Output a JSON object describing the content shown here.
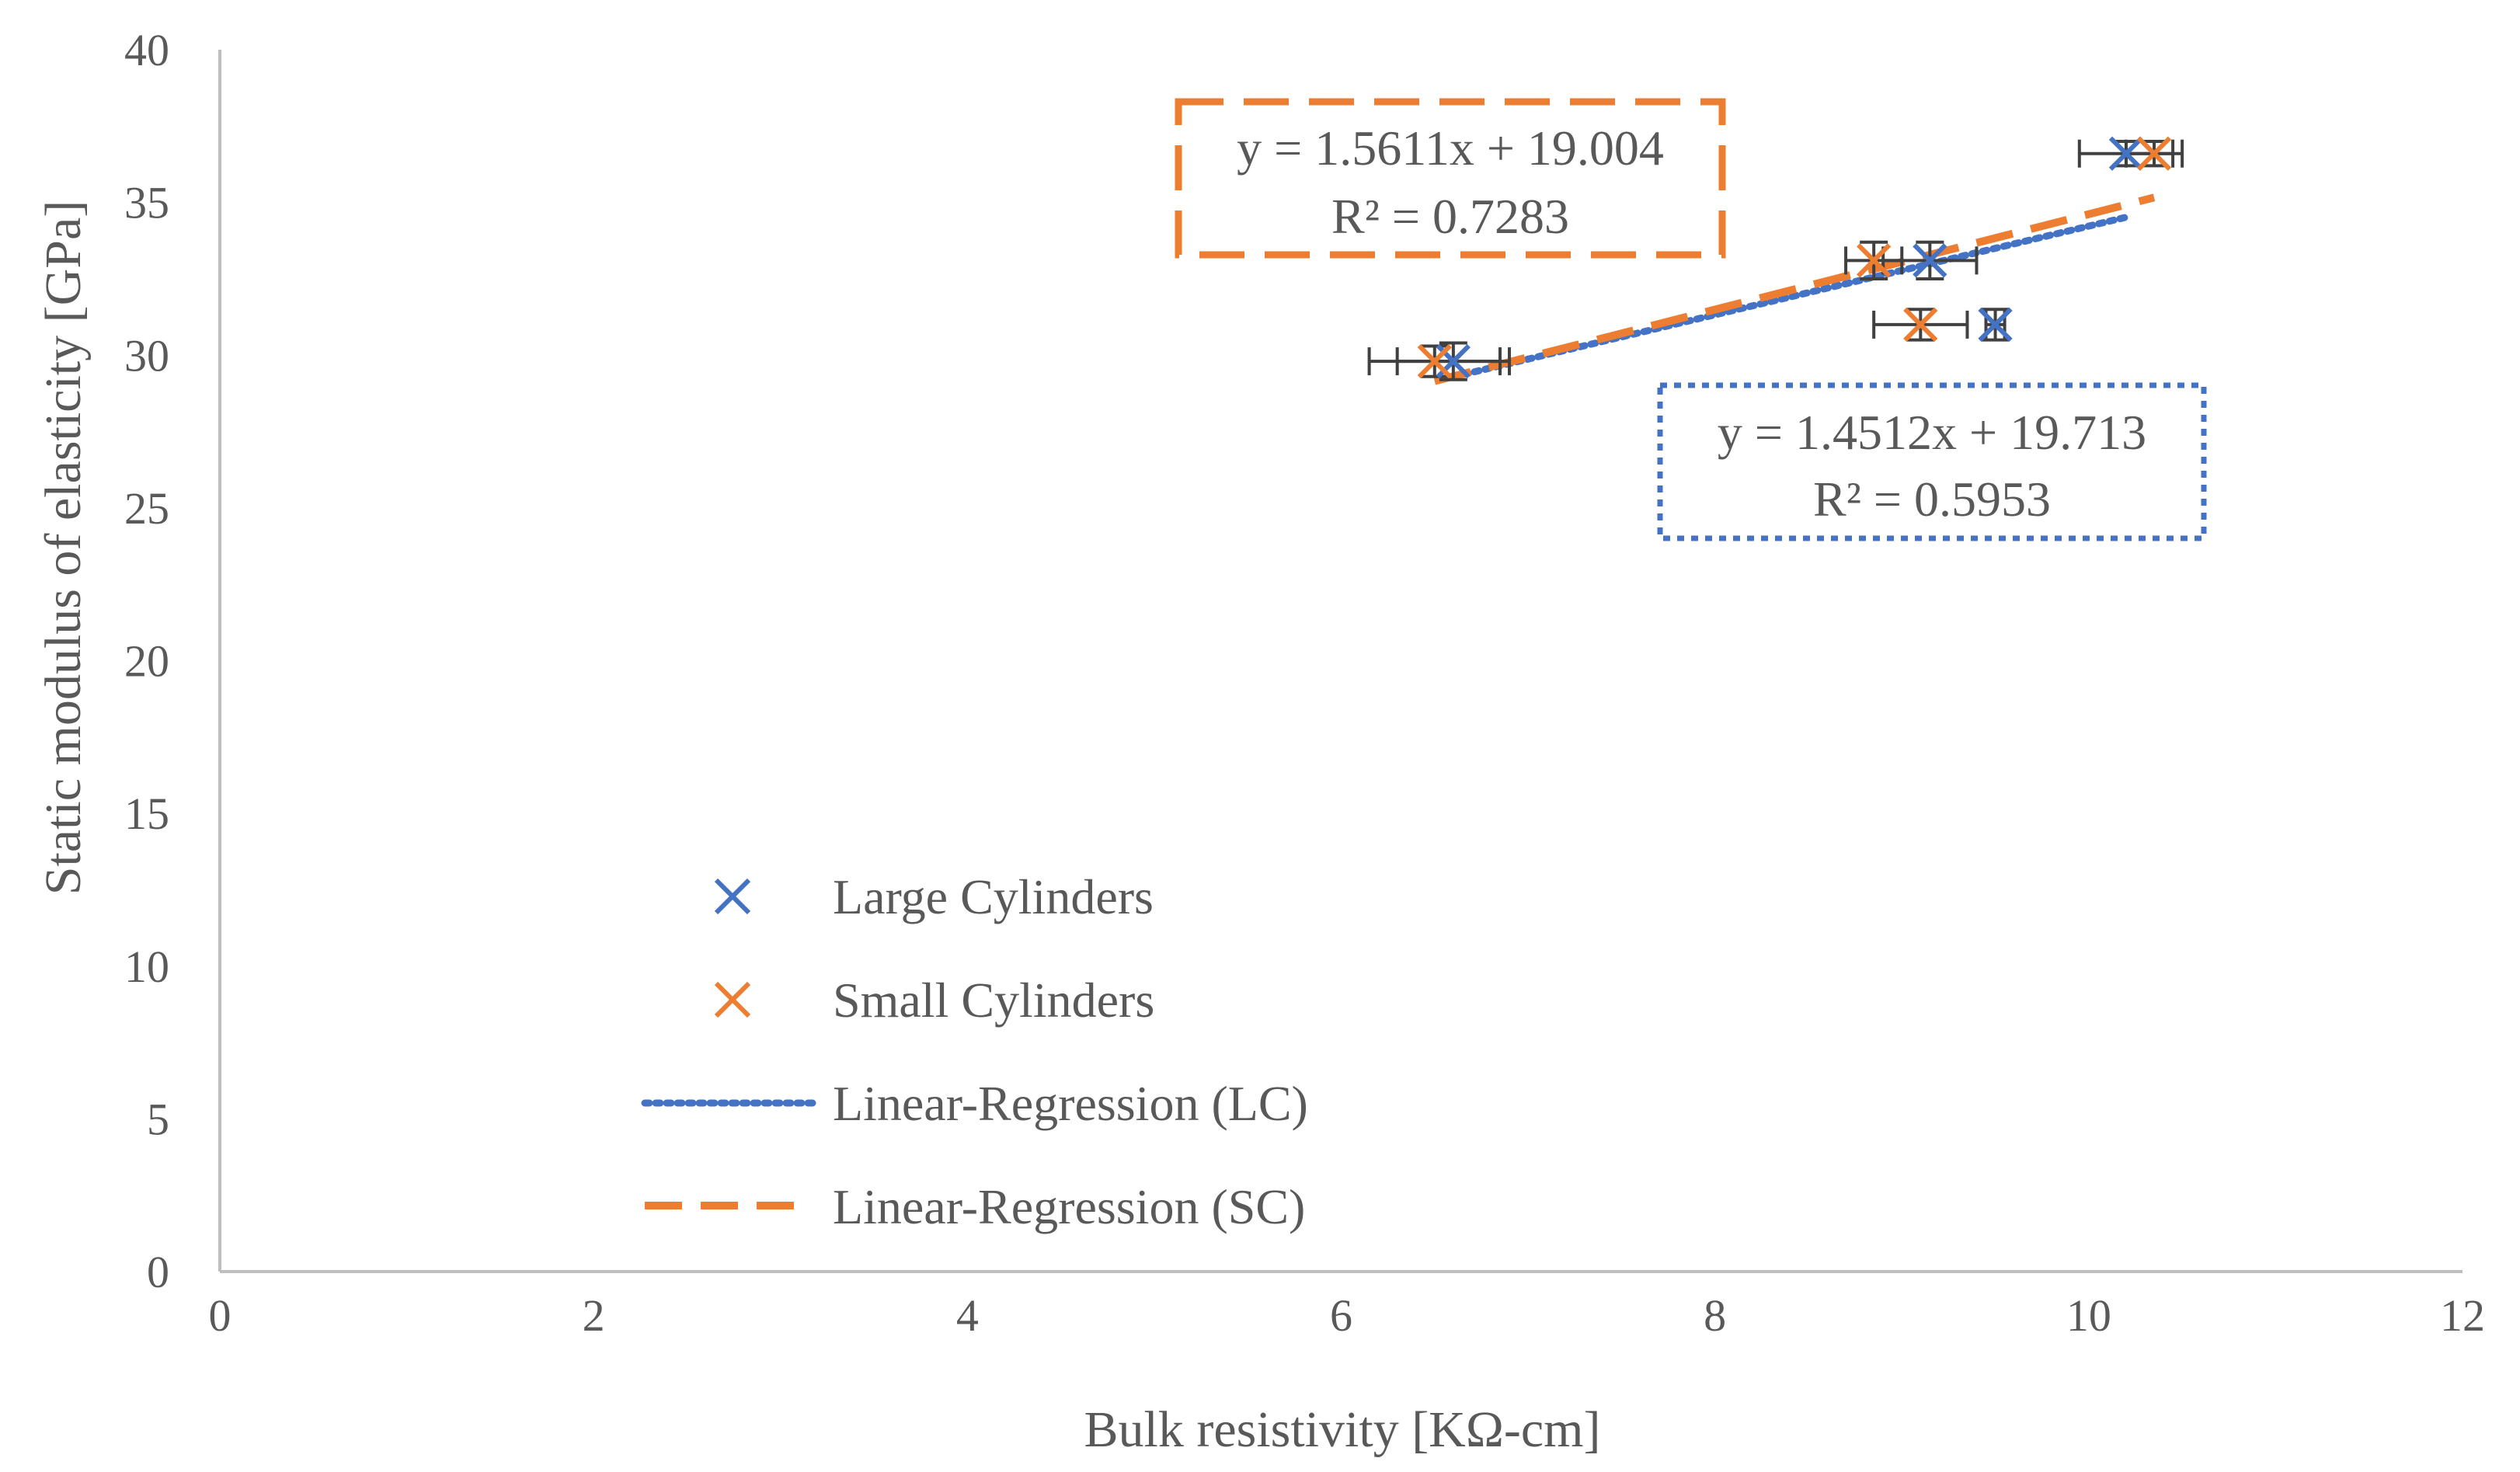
{
  "chart_data": {
    "type": "scatter",
    "title": "",
    "xlabel": "Bulk resistivity [KΩ-cm]",
    "ylabel": "Static modulus of elasticity [GPa]",
    "xlim": [
      0,
      12
    ],
    "ylim": [
      0,
      40
    ],
    "x_ticks": [
      "0",
      "2",
      "4",
      "6",
      "8",
      "10",
      "12"
    ],
    "y_ticks": [
      "0",
      "5",
      "10",
      "15",
      "20",
      "25",
      "30",
      "35",
      "40"
    ],
    "grid": false,
    "legend_position": "bottom-left",
    "colors": {
      "large": "#4472C4",
      "small": "#ED7D31",
      "error_bar": "#404040",
      "axis": "#bfbfbf"
    },
    "series": [
      {
        "name": "Large Cylinders",
        "marker": "x",
        "color": "#4472C4",
        "points": [
          {
            "x": 6.6,
            "y": 29.8,
            "xerr": 0.3,
            "yerr": 0.6
          },
          {
            "x": 9.15,
            "y": 33.1,
            "xerr": 0.25,
            "yerr": 0.6
          },
          {
            "x": 9.5,
            "y": 31.0,
            "xerr": 0.05,
            "yerr": 0.5
          },
          {
            "x": 10.2,
            "y": 36.6,
            "xerr": 0.25,
            "yerr": 0.4
          }
        ]
      },
      {
        "name": "Small Cylinders",
        "marker": "x",
        "color": "#ED7D31",
        "points": [
          {
            "x": 6.5,
            "y": 29.8,
            "xerr": 0.35,
            "yerr": 0.5
          },
          {
            "x": 8.85,
            "y": 33.1,
            "xerr": 0.15,
            "yerr": 0.6
          },
          {
            "x": 9.1,
            "y": 31.0,
            "xerr": 0.25,
            "yerr": 0.5
          },
          {
            "x": 10.35,
            "y": 36.6,
            "xerr": 0.15,
            "yerr": 0.4
          }
        ]
      }
    ],
    "trendlines": [
      {
        "name": "Linear-Regression (LC)",
        "style": "dotted",
        "color": "#4472C4",
        "slope": 1.4512,
        "intercept": 19.713,
        "x_range": [
          6.6,
          10.2
        ],
        "equation": "y = 1.4512x + 19.713",
        "r2": "R² = 0.5953",
        "label_position": "lower-right of lines"
      },
      {
        "name": "Linear-Regression (SC)",
        "style": "dashed",
        "color": "#ED7D31",
        "slope": 1.5611,
        "intercept": 19.004,
        "x_range": [
          6.5,
          10.35
        ],
        "equation": "y = 1.5611x + 19.004",
        "r2": "R² = 0.7283",
        "label_position": "upper-left of lines"
      }
    ]
  }
}
